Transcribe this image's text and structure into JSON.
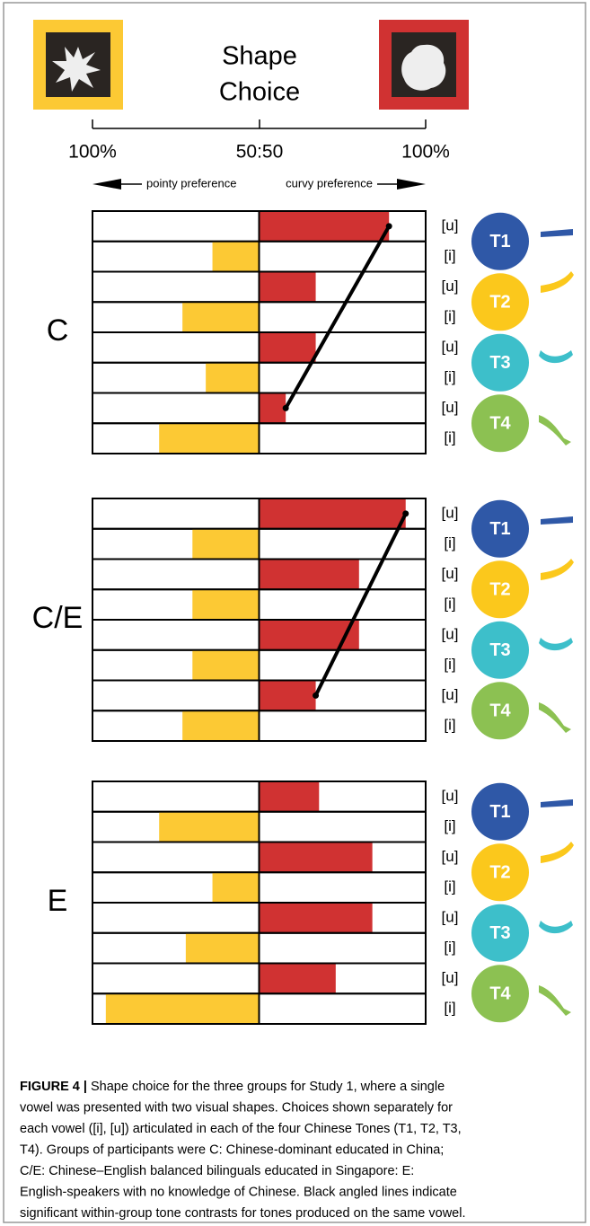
{
  "figure": {
    "header": {
      "title_lines": [
        "Shape",
        "Choice"
      ],
      "scale_labels": [
        "100%",
        "50:50",
        "100%"
      ],
      "pointy_label": "pointy preference",
      "curvy_label": "curvy preference"
    },
    "vowels": [
      "[u]",
      "[i]"
    ],
    "tones": [
      {
        "label": "T1",
        "color": "#2f58a7"
      },
      {
        "label": "T2",
        "color": "#fbc81c"
      },
      {
        "label": "T3",
        "color": "#3dbfca"
      },
      {
        "label": "T4",
        "color": "#8cc152"
      }
    ],
    "curvy_color": "#d03232",
    "pointy_color": "#fcc934",
    "groups": [
      {
        "label": "C",
        "values": [
          89,
          36,
          67,
          27,
          67,
          34,
          58,
          20
        ],
        "contrast_line": true
      },
      {
        "label": "C/E",
        "values": [
          94,
          30,
          80,
          30,
          80,
          30,
          67,
          27
        ],
        "contrast_line": true
      },
      {
        "label": "E",
        "values": [
          68,
          20,
          84,
          36,
          84,
          28,
          73,
          4
        ],
        "contrast_line": false
      }
    ]
  },
  "caption": {
    "label": "FIGURE 4 |",
    "lines": [
      "Shape choice for the three groups for Study 1, where a single",
      "vowel was presented with two visual shapes. Choices shown separately for",
      "each vowel ([i], [u]) articulated in each of the four Chinese Tones (T1, T2, T3,",
      "T4). Groups of participants were C: Chinese-dominant educated in China;",
      "C/E: Chinese–English balanced bilinguals educated in Singapore: E:",
      "English-speakers with no knowledge of Chinese. Black angled lines indicate",
      "significant within-group tone contrasts for tones produced on the same vowel."
    ]
  }
}
